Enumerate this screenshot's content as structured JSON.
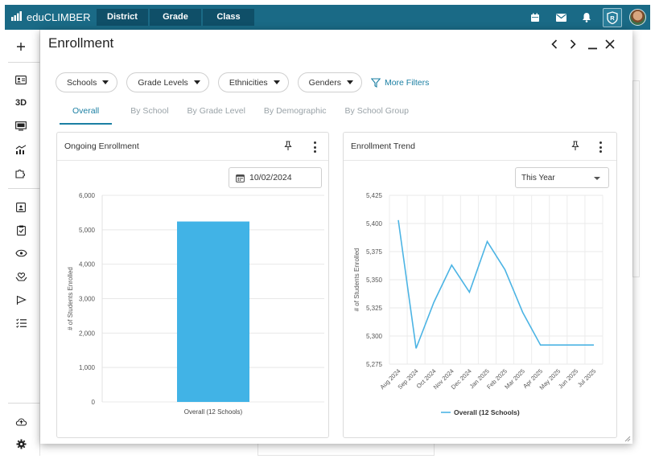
{
  "app": {
    "name": "eduCLIMBER",
    "nav": [
      "District",
      "Grade",
      "Class"
    ]
  },
  "rail": {
    "three_d_label": "3D"
  },
  "modal": {
    "title": "Enrollment",
    "filters": [
      "Schools",
      "Grade Levels",
      "Ethnicities",
      "Genders"
    ],
    "more_filters_label": "More Filters",
    "tabs": [
      "Overall",
      "By School",
      "By Grade Level",
      "By Demographic",
      "By School Group"
    ],
    "active_tab": "Overall"
  },
  "cards": {
    "ongoing": {
      "title": "Ongoing Enrollment",
      "date_value": "10/02/2024"
    },
    "trend": {
      "title": "Enrollment Trend",
      "range_value": "This Year"
    }
  },
  "colors": {
    "topbar": "#1a6a86",
    "accent": "#1b7fa3",
    "bar": "#41b3e6",
    "line": "#4cb4e4"
  },
  "chart_data": [
    {
      "type": "bar",
      "categories": [
        "Overall (12 Schools)"
      ],
      "values": [
        5240
      ],
      "ylabel": "# of Students Enrolled",
      "ylim": [
        0,
        6000
      ],
      "yticks": [
        "0",
        "1,000",
        "2,000",
        "3,000",
        "4,000",
        "5,000",
        "6,000"
      ],
      "grid": true
    },
    {
      "type": "line",
      "x": [
        "Aug 2024",
        "Sep 2024",
        "Oct 2024",
        "Nov 2024",
        "Dec 2024",
        "Jan 2025",
        "Feb 2025",
        "Mar 2025",
        "Apr 2025",
        "May 2025",
        "Jun 2025",
        "Jul 2025"
      ],
      "series": [
        {
          "name": "Overall (12 Schools)",
          "values": [
            5403,
            5289,
            5330,
            5363,
            5339,
            5384,
            5359,
            5321,
            5292,
            5292,
            5292,
            5292
          ]
        }
      ],
      "ylabel": "# of Students Enrolled",
      "ylim": [
        5275,
        5425
      ],
      "yticks": [
        "5,275",
        "5,300",
        "5,325",
        "5,350",
        "5,375",
        "5,400",
        "5,425"
      ],
      "legend": "bottom",
      "grid": true
    }
  ]
}
